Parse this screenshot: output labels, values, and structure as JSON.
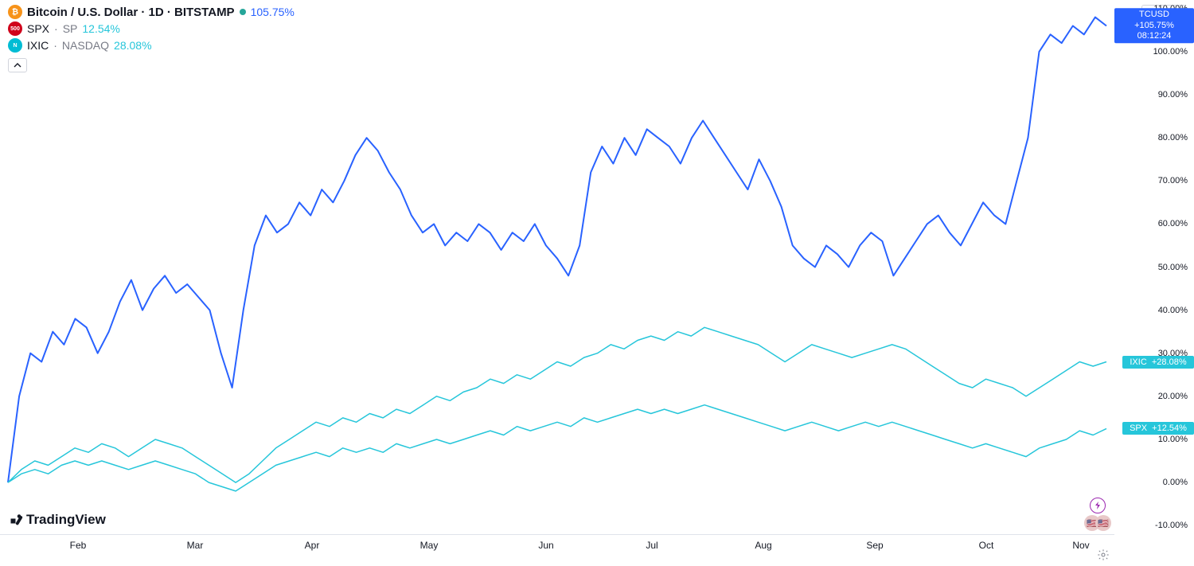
{
  "header": {
    "main": {
      "icon_bg": "#f7931a",
      "icon_glyph": "₿",
      "title": "Bitcoin / U.S. Dollar · 1D · BITSTAMP",
      "status_color": "#26a69a",
      "pct": "105.75%",
      "pct_color": "#2962ff"
    },
    "rows": [
      {
        "icon_bg": "#d0021b",
        "icon_glyph": "500",
        "symbol": "SPX",
        "source": "SP",
        "pct": "12.54%",
        "pct_color": "#26c6da"
      },
      {
        "icon_bg": "#00bcd4",
        "icon_glyph": "N",
        "symbol": "IXIC",
        "source": "NASDAQ",
        "pct": "28.08%",
        "pct_color": "#26c6da"
      }
    ],
    "currency": "USD"
  },
  "brand": "TradingView",
  "chart": {
    "type": "line",
    "background_color": "#ffffff",
    "grid_color": "#e0e3eb",
    "ylim": [
      -12,
      112
    ],
    "ytick_step": 10,
    "ytick_suffix": "%",
    "xlabels": [
      "Feb",
      "Mar",
      "Apr",
      "May",
      "Jun",
      "Jul",
      "Aug",
      "Sep",
      "Oct",
      "Nov"
    ],
    "xlabel_positions_pct": [
      7,
      17.5,
      28,
      38.5,
      49,
      58.5,
      68.5,
      78.5,
      88.5,
      97
    ],
    "series": [
      {
        "name": "BTCUSD",
        "color": "#2962ff",
        "line_width": 2,
        "end_label": "TCUSD",
        "end_pct": "+105.75%",
        "end_time": "08:12:24",
        "end_bg": "#2962ff",
        "data": [
          0,
          20,
          30,
          28,
          35,
          32,
          38,
          36,
          30,
          35,
          42,
          47,
          40,
          45,
          48,
          44,
          46,
          43,
          40,
          30,
          22,
          40,
          55,
          62,
          58,
          60,
          65,
          62,
          68,
          65,
          70,
          76,
          80,
          77,
          72,
          68,
          62,
          58,
          60,
          55,
          58,
          56,
          60,
          58,
          54,
          58,
          56,
          60,
          55,
          52,
          48,
          55,
          72,
          78,
          74,
          80,
          76,
          82,
          80,
          78,
          74,
          80,
          84,
          80,
          76,
          72,
          68,
          75,
          70,
          64,
          55,
          52,
          50,
          55,
          53,
          50,
          55,
          58,
          56,
          48,
          52,
          56,
          60,
          62,
          58,
          55,
          60,
          65,
          62,
          60,
          70,
          80,
          100,
          104,
          102,
          106,
          104,
          108,
          106
        ]
      },
      {
        "name": "IXIC",
        "color": "#26c6da",
        "line_width": 1.5,
        "end_label": "IXIC",
        "end_pct": "+28.08%",
        "end_bg": "#26c6da",
        "data": [
          0,
          3,
          5,
          4,
          6,
          8,
          7,
          9,
          8,
          6,
          8,
          10,
          9,
          8,
          6,
          4,
          2,
          0,
          2,
          5,
          8,
          10,
          12,
          14,
          13,
          15,
          14,
          16,
          15,
          17,
          16,
          18,
          20,
          19,
          21,
          22,
          24,
          23,
          25,
          24,
          26,
          28,
          27,
          29,
          30,
          32,
          31,
          33,
          34,
          33,
          35,
          34,
          36,
          35,
          34,
          33,
          32,
          30,
          28,
          30,
          32,
          31,
          30,
          29,
          30,
          31,
          32,
          31,
          29,
          27,
          25,
          23,
          22,
          24,
          23,
          22,
          20,
          22,
          24,
          26,
          28,
          27,
          28
        ]
      },
      {
        "name": "SPX",
        "color": "#26c6da",
        "line_width": 1.5,
        "end_label": "SPX",
        "end_pct": "+12.54%",
        "end_bg": "#26c6da",
        "data": [
          0,
          2,
          3,
          2,
          4,
          5,
          4,
          5,
          4,
          3,
          4,
          5,
          4,
          3,
          2,
          0,
          -1,
          -2,
          0,
          2,
          4,
          5,
          6,
          7,
          6,
          8,
          7,
          8,
          7,
          9,
          8,
          9,
          10,
          9,
          10,
          11,
          12,
          11,
          13,
          12,
          13,
          14,
          13,
          15,
          14,
          15,
          16,
          17,
          16,
          17,
          16,
          17,
          18,
          17,
          16,
          15,
          14,
          13,
          12,
          13,
          14,
          13,
          12,
          13,
          14,
          13,
          14,
          13,
          12,
          11,
          10,
          9,
          8,
          9,
          8,
          7,
          6,
          8,
          9,
          10,
          12,
          11,
          12.5
        ]
      }
    ]
  }
}
